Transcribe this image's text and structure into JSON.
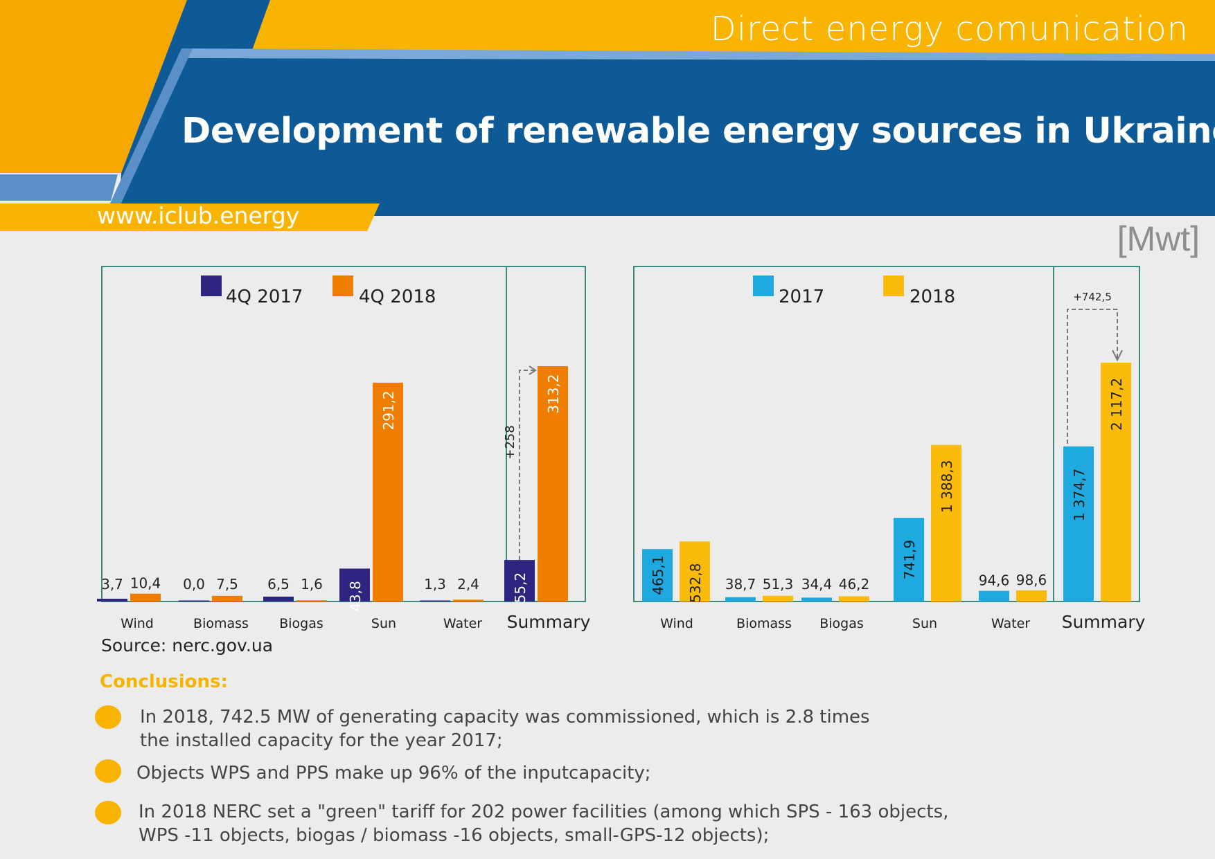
{
  "header": {
    "tagline": "Direct energy comunication",
    "title": "Development of renewable energy sources in Ukraine",
    "website": "www.iclub.energy",
    "unit": "[Mwt]",
    "colors": {
      "orange": "#f8b400",
      "blue": "#0d5a96",
      "light_blue": "#5b8fc7"
    }
  },
  "chart_data": [
    {
      "type": "bar",
      "categories": [
        "Wind",
        "Biomass",
        "Biogas",
        "Sun",
        "Water",
        "Summary"
      ],
      "series": [
        {
          "name": "4Q 2017",
          "color": "#2e2580",
          "values": [
            3.7,
            0.0,
            6.5,
            43.8,
            1.3,
            55.2
          ],
          "labels": [
            "3,7",
            "0,0",
            "6,5",
            "43,8",
            "1,3",
            "55,2"
          ]
        },
        {
          "name": "4Q 2018",
          "color": "#ee7d00",
          "values": [
            10.4,
            7.5,
            1.6,
            291.2,
            2.4,
            313.2
          ],
          "labels": [
            "10,4",
            "7,5",
            "1,6",
            "291,2",
            "2,4",
            "313,2"
          ]
        }
      ],
      "ylim": [
        0,
        313.2
      ],
      "annotation": "+258",
      "legend_position": "top"
    },
    {
      "type": "bar",
      "categories": [
        "Wind",
        "Biomass",
        "Biogas",
        "Sun",
        "Water",
        "Summary"
      ],
      "series": [
        {
          "name": "2017",
          "color": "#1ea9e1",
          "values": [
            465.1,
            38.7,
            34.4,
            741.9,
            94.6,
            1374.7
          ],
          "labels": [
            "465,1",
            "38,7",
            "34,4",
            "741,9",
            "94,6",
            "1 374,7"
          ]
        },
        {
          "name": "2018",
          "color": "#fbbb0b",
          "values": [
            532.8,
            51.3,
            46.2,
            1388.3,
            98.6,
            2117.2
          ],
          "labels": [
            "532,8",
            "51,3",
            "46,2",
            "1 388,3",
            "98,6",
            "2 117,2"
          ]
        }
      ],
      "ylim": [
        0,
        2117.2
      ],
      "annotation": "+742,5",
      "legend_position": "top"
    }
  ],
  "source": "Source: nerc.gov.ua",
  "conclusions": {
    "title": "Conclusions:",
    "items": [
      {
        "line1": "In 2018,   742.5 MW of generating capacity was commissioned, which is 2.8 times",
        "line2": "the installed capacity for the year 2017;"
      },
      {
        "line1": "Objects WPS and PPS make up 96% of the inputcapacity;",
        "line2": ""
      },
      {
        "line1": "In 2018 NERC set a \"green\" tariff for 202 power facilities (among which SPS - 163 objects,",
        "line2": "WPS -11 objects, biogas / biomass -16 objects, small-GPS-12 objects);"
      }
    ]
  }
}
